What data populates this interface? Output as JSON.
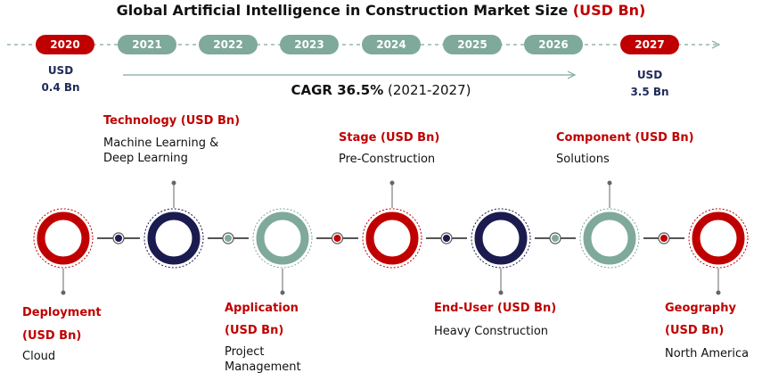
{
  "chart_data": {
    "type": "infographic",
    "title": "Global Artificial Intelligence in Construction Market Size",
    "title_unit": "(USD Bn)",
    "timeline": {
      "years": [
        "2020",
        "2021",
        "2022",
        "2023",
        "2024",
        "2025",
        "2026",
        "2027"
      ],
      "highlighted": [
        "2020",
        "2027"
      ],
      "start": {
        "year": "2020",
        "currency": "USD",
        "value": 0.4,
        "label": "0.4 Bn"
      },
      "end": {
        "year": "2027",
        "currency": "USD",
        "value": 3.5,
        "label": "3.5 Bn"
      },
      "cagr_label": "CAGR 36.5%",
      "cagr_period": "(2021-2027)"
    },
    "segments": [
      {
        "key": "deployment",
        "title": "Deployment",
        "unit": "(USD Bn)",
        "value": "Cloud",
        "color": "#c00000"
      },
      {
        "key": "technology",
        "title": "Technology (USD Bn)",
        "value_lines": [
          "Machine Learning &",
          "Deep Learning"
        ],
        "color": "#1b1b4f"
      },
      {
        "key": "application",
        "title": "Application",
        "unit": "(USD Bn)",
        "value_lines": [
          "Project",
          "Management"
        ],
        "color": "#7fa99b"
      },
      {
        "key": "stage",
        "title": "Stage (USD Bn)",
        "value": "Pre-Construction",
        "color": "#c00000"
      },
      {
        "key": "end_user",
        "title": "End-User (USD Bn)",
        "value": "Heavy Construction",
        "color": "#1b1b4f"
      },
      {
        "key": "component",
        "title": "Component (USD Bn)",
        "value": "Solutions",
        "color": "#7fa99b"
      },
      {
        "key": "geography",
        "title": "Geography",
        "unit": "(USD Bn)",
        "value": "North America",
        "color": "#c00000"
      }
    ]
  },
  "colors": {
    "red": "#c00000",
    "navy": "#1b1b4f",
    "teal": "#7fa99b"
  }
}
